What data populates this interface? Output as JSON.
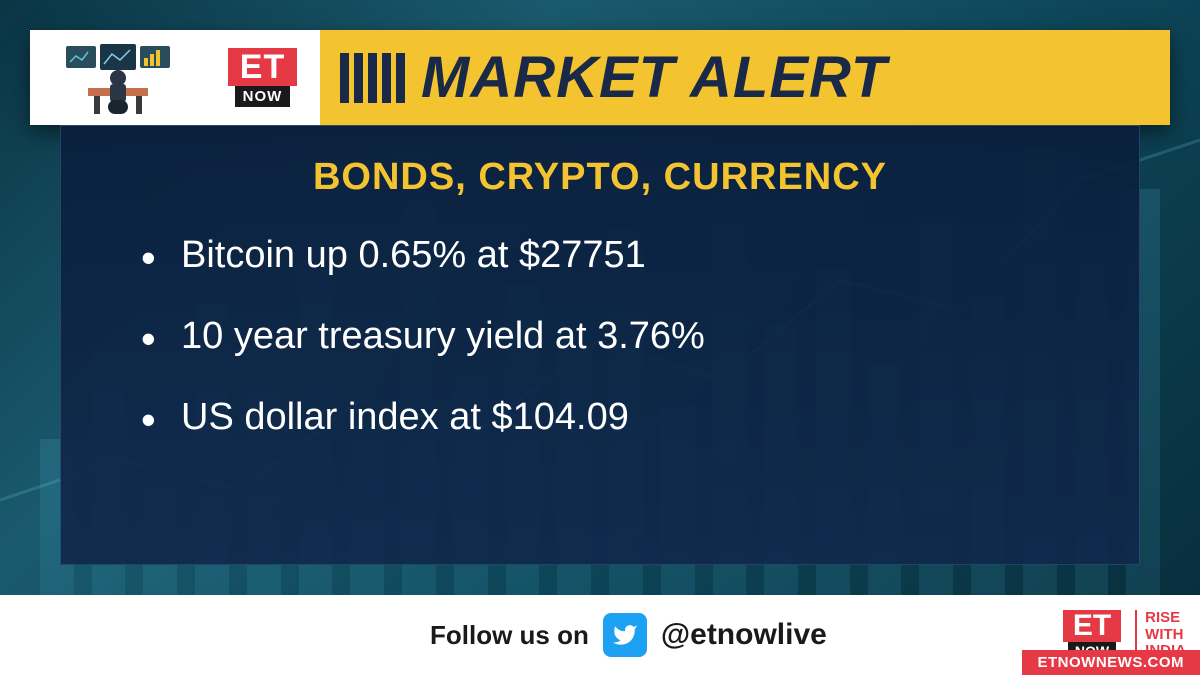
{
  "header": {
    "logo_top": "ET",
    "logo_bottom": "NOW",
    "title": "MARKET ALERT"
  },
  "panel": {
    "heading": "BONDS, CRYPTO, CURRENCY",
    "bullets": [
      "Bitcoin up 0.65% at $27751",
      "10 year treasury yield at 3.76%",
      "US dollar index at $104.09"
    ]
  },
  "footer": {
    "follow_label": "Follow us on",
    "handle": "@etnowlive",
    "logo_top": "ET",
    "logo_bottom": "NOW",
    "rise_line1": "RISE",
    "rise_line2": "WITH",
    "rise_line3": "INDIA",
    "url": "ETNOWNEWS.COM"
  },
  "colors": {
    "accent_yellow": "#f4c430",
    "accent_red": "#e63946",
    "dark_navy": "#1a2947",
    "twitter_blue": "#1da1f2",
    "bg_teal_dark": "#0a3545",
    "bg_teal_light": "#1a5a6e"
  },
  "bg_bars_heights": [
    35,
    48,
    28,
    55,
    42,
    62,
    38,
    70,
    45,
    58,
    50,
    66,
    40,
    74,
    52,
    60,
    46,
    68,
    56,
    78,
    64,
    72
  ]
}
